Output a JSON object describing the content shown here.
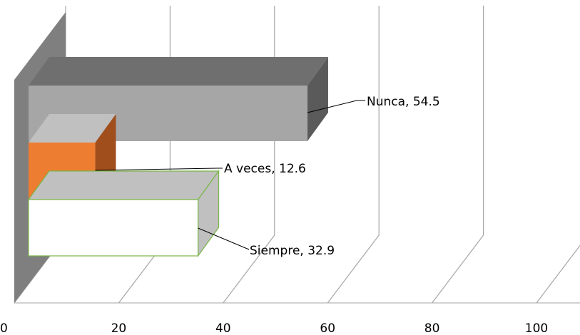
{
  "chart_data": {
    "type": "bar",
    "orientation": "horizontal",
    "style": "3d",
    "stacked": true,
    "categories": [
      ""
    ],
    "series": [
      {
        "name": "Siempre",
        "values": [
          32.9
        ],
        "color": "#ffffff",
        "border": "#7ab648",
        "label": "Siempre, 32.9"
      },
      {
        "name": "A veces",
        "values": [
          12.6
        ],
        "color": "#ed7d31",
        "label": "A veces, 12.6"
      },
      {
        "name": "Nunca",
        "values": [
          54.5
        ],
        "color": "#a6a6a6",
        "label": "Nunca, 54.5"
      }
    ],
    "xlim": [
      0,
      100
    ],
    "xticks": [
      "0",
      "20",
      "40",
      "60",
      "80",
      "100"
    ],
    "grid": true,
    "legend": "none",
    "title": "",
    "xlabel": "",
    "ylabel": ""
  }
}
